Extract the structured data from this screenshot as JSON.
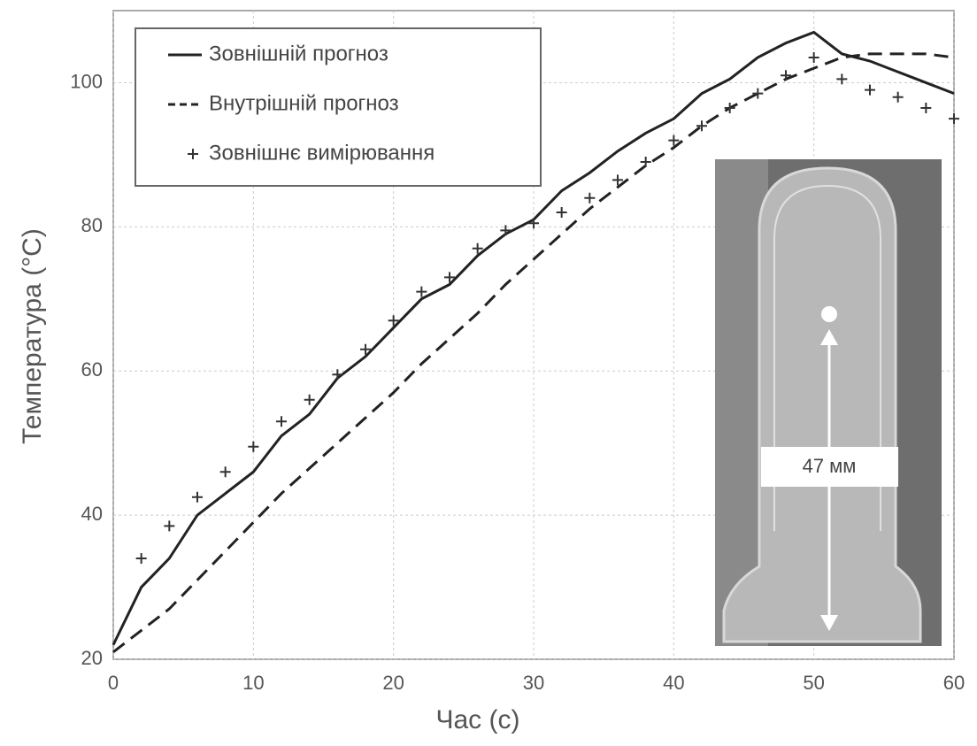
{
  "chart_data": {
    "type": "line",
    "x_label": "Час (с)",
    "y_label": "Температура (°С)",
    "x": [
      0,
      2,
      4,
      6,
      8,
      10,
      12,
      14,
      16,
      18,
      20,
      22,
      24,
      26,
      28,
      30,
      32,
      34,
      36,
      38,
      40,
      42,
      44,
      46,
      48,
      50,
      52,
      54,
      56,
      58,
      60
    ],
    "series": [
      {
        "name": "Зовнішній прогноз",
        "color": "#222222",
        "style": "solid",
        "values": [
          22,
          30,
          34,
          40,
          43,
          46,
          51,
          54,
          59,
          62,
          66,
          70,
          72,
          76,
          79,
          81,
          85,
          87.5,
          90.5,
          93,
          95,
          98.5,
          100.5,
          103.5,
          105.5,
          107,
          104,
          103,
          101.5,
          100,
          98.5
        ]
      },
      {
        "name": "Внутрішній прогноз",
        "color": "#222222",
        "style": "dashed",
        "values": [
          21,
          24,
          27,
          31,
          35,
          39,
          43,
          46.5,
          50,
          53.5,
          57,
          61,
          64.5,
          68,
          72,
          75.5,
          79,
          82.5,
          85.5,
          88.5,
          91,
          94,
          96.5,
          98.5,
          100.5,
          102,
          103.5,
          104,
          104,
          104,
          103.5
        ]
      },
      {
        "name": "Зовнішнє вимірювання",
        "color": "#333333",
        "style": "markers",
        "values": [
          null,
          34,
          38.5,
          42.5,
          46,
          49.5,
          53,
          56,
          59.5,
          63,
          67,
          71,
          73,
          77,
          79.5,
          80.5,
          82,
          84,
          86.5,
          89,
          92,
          94,
          96.5,
          98.5,
          101,
          103.5,
          100.5,
          99,
          98,
          96.5,
          95
        ]
      }
    ],
    "xlim": [
      0,
      60
    ],
    "xticks": [
      0,
      10,
      20,
      30,
      40,
      50,
      60
    ],
    "ylim": [
      20,
      110
    ],
    "yticks": [
      20,
      40,
      60,
      80,
      100
    ],
    "grid": true,
    "legend_position": "upper-left",
    "inset_label": "47 мм"
  }
}
